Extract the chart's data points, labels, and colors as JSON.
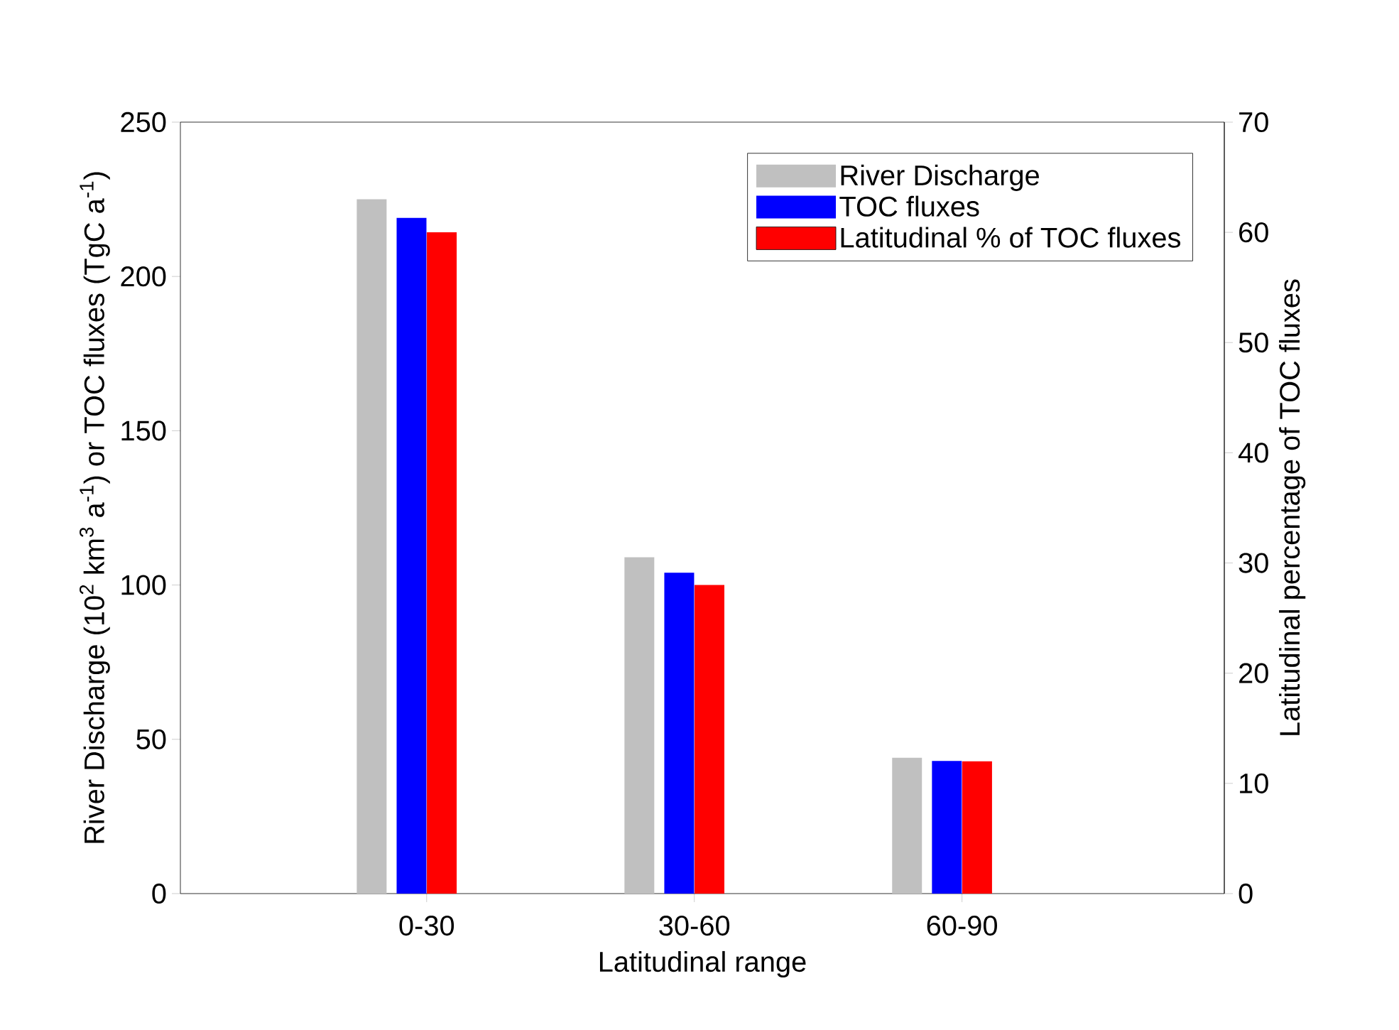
{
  "chart_data": {
    "type": "bar",
    "categories": [
      "0-30",
      "30-60",
      "60-90"
    ],
    "series": [
      {
        "name": "River Discharge",
        "color": "#c0c0c0",
        "values": [
          225,
          109,
          44
        ]
      },
      {
        "name": "TOC fluxes",
        "color": "#0000ff",
        "values": [
          219,
          104,
          43
        ]
      },
      {
        "name": "Latitudinal % of TOC fluxes",
        "color": "#ff0000",
        "values": [
          60,
          28,
          12
        ],
        "axis": "y2"
      }
    ],
    "xlabel": "Latitudinal range",
    "ylabel": "River Discharge (10$^{2}$ km$^{3}$ a$^{-1}$) or TOC fluxes (TgC a$^{-1}$)",
    "y2label": "Latitudinal percentage of TOC fluxes",
    "ylim": [
      0,
      250
    ],
    "yticks": [
      0,
      50,
      100,
      150,
      200,
      250
    ],
    "y2lim": [
      0,
      70
    ],
    "y2ticks": [
      0,
      10,
      20,
      30,
      40,
      50,
      60,
      70
    ],
    "legend": "top right",
    "grid": false
  }
}
